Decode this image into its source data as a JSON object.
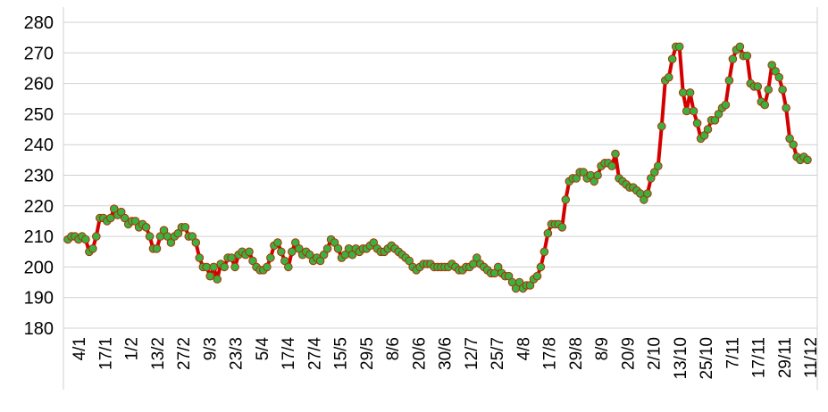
{
  "chart_data": {
    "type": "line",
    "title": "",
    "xlabel": "",
    "ylabel": "",
    "ylim": [
      180,
      280
    ],
    "y_ticks": [
      180,
      190,
      200,
      210,
      220,
      230,
      240,
      250,
      260,
      270,
      280
    ],
    "grid": "horizontal",
    "legend": "none",
    "x_tick_labels": [
      "4/1",
      "17/1",
      "1/2",
      "13/2",
      "27/2",
      "9/3",
      "23/3",
      "5/4",
      "17/4",
      "27/4",
      "15/5",
      "29/5",
      "8/6",
      "20/6",
      "30/6",
      "12/7",
      "25/7",
      "4/8",
      "17/8",
      "29/8",
      "8/9",
      "20/9",
      "2/10",
      "13/10",
      "25/10",
      "7/11",
      "17/11",
      "29/11",
      "11/12"
    ],
    "line_color": "#d40000",
    "marker_color": "#3cb043",
    "marker_edge_color": "#b03000",
    "series": [
      {
        "values": [
          209,
          210,
          210,
          209,
          210,
          209,
          205,
          206,
          210,
          216,
          216,
          215,
          216,
          219,
          217,
          218,
          216,
          214,
          215,
          215,
          213,
          214,
          213,
          210,
          206,
          206,
          210,
          212,
          210,
          208,
          210,
          211,
          213,
          213,
          210,
          210,
          208,
          203,
          200,
          200,
          197,
          200,
          196,
          201,
          200,
          203,
          203,
          200,
          204,
          205,
          204,
          205,
          202,
          200,
          199,
          199,
          200,
          203,
          207,
          208,
          205,
          202,
          200,
          205,
          208,
          206,
          204,
          205,
          204,
          202,
          203,
          202,
          204,
          206,
          209,
          208,
          206,
          203,
          204,
          206,
          204,
          206,
          205,
          206,
          206,
          207,
          208,
          206,
          205,
          205,
          206,
          207,
          206,
          205,
          204,
          203,
          202,
          200,
          199,
          200,
          201,
          201,
          201,
          200,
          200,
          200,
          200,
          200,
          201,
          200,
          199,
          199,
          200,
          200,
          201,
          203,
          201,
          200,
          199,
          198,
          198,
          200,
          198,
          197,
          197,
          195,
          193,
          195,
          193,
          194,
          194,
          196,
          197,
          200,
          205,
          211,
          214,
          214,
          214,
          213,
          222,
          228,
          229,
          229,
          231,
          231,
          229,
          230,
          228,
          230,
          233,
          234,
          234,
          233,
          237,
          229,
          228,
          227,
          226,
          226,
          225,
          224,
          222,
          224,
          229,
          231,
          233,
          246,
          261,
          262,
          268,
          272,
          272,
          257,
          251,
          257,
          251,
          247,
          242,
          243,
          245,
          248,
          248,
          250,
          252,
          253,
          261,
          268,
          271,
          272,
          269,
          269,
          260,
          259,
          259,
          254,
          253,
          258,
          266,
          264,
          262,
          258,
          252,
          242,
          240,
          236,
          235,
          236,
          235
        ]
      }
    ]
  }
}
